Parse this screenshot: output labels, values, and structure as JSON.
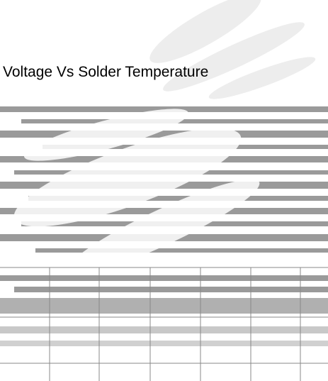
{
  "title": "Voltage Vs Solder Temperature"
}
